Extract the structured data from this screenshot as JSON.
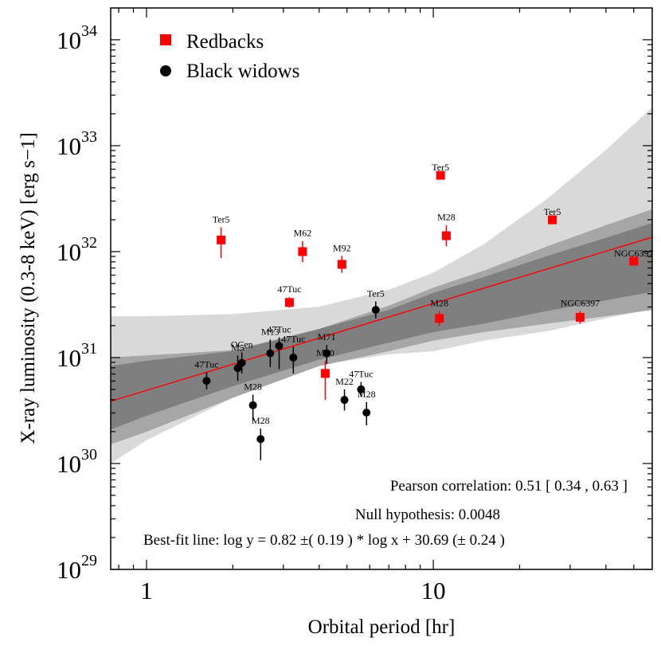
{
  "chart_data": {
    "type": "scatter",
    "xlabel": "Orbital period [hr]",
    "ylabel": "X-ray luminosity (0.3-8 keV) [erg s−1]",
    "xscale": "log",
    "yscale": "log",
    "xlim": [
      0.75,
      58
    ],
    "ylim": [
      29.0,
      34.3
    ],
    "x_ticks": [
      {
        "value": 1,
        "label": "1"
      },
      {
        "value": 10,
        "label": "10"
      }
    ],
    "y_ticks": [
      {
        "value": 29,
        "base": "10",
        "exp": "29"
      },
      {
        "value": 30,
        "base": "10",
        "exp": "30"
      },
      {
        "value": 31,
        "base": "10",
        "exp": "31"
      },
      {
        "value": 32,
        "base": "10",
        "exp": "32"
      },
      {
        "value": 33,
        "base": "10",
        "exp": "33"
      },
      {
        "value": 34,
        "base": "10",
        "exp": "34"
      }
    ],
    "legend": {
      "position": "top-left",
      "entries": [
        {
          "label": "Redbacks",
          "marker": "square",
          "color": "#ff0000"
        },
        {
          "label": "Black widows",
          "marker": "circle",
          "color": "#000000"
        }
      ]
    },
    "series": [
      {
        "name": "Redbacks",
        "marker": "square",
        "color": "#ff0000",
        "points": [
          {
            "label": "Ter5",
            "x": 1.82,
            "logy": 32.11,
            "err_low": 0.17,
            "err_high": 0.12
          },
          {
            "label": "M62",
            "x": 3.5,
            "logy": 32.0,
            "err_low": 0.1,
            "err_high": 0.1
          },
          {
            "label": "M92",
            "x": 4.8,
            "logy": 31.88,
            "err_low": 0.08,
            "err_high": 0.08
          },
          {
            "label": "47Tuc",
            "x": 3.15,
            "logy": 31.52,
            "err_low": 0.05,
            "err_high": 0.05
          },
          {
            "label": "M30",
            "x": 4.2,
            "logy": 30.85,
            "err_low": 0.25,
            "err_high": 0.12
          },
          {
            "label": "Ter5",
            "x": 10.6,
            "logy": 32.72,
            "err_low": 0.0,
            "err_high": 0.0
          },
          {
            "label": "M28",
            "x": 11.1,
            "logy": 32.15,
            "err_low": 0.1,
            "err_high": 0.1
          },
          {
            "label": "M28",
            "x": 10.5,
            "logy": 31.37,
            "err_low": 0.07,
            "err_high": 0.07
          },
          {
            "label": "Ter5",
            "x": 26.0,
            "logy": 32.3,
            "err_low": 0.0,
            "err_high": 0.0
          },
          {
            "label": "NGC6397",
            "x": 50.0,
            "logy": 31.91,
            "err_low": 0.0,
            "err_high": 0.0
          },
          {
            "label": "NGC6397",
            "x": 32.5,
            "logy": 31.38,
            "err_low": 0.06,
            "err_high": 0.06
          }
        ]
      },
      {
        "name": "Black widows",
        "marker": "circle",
        "color": "#000000",
        "points": [
          {
            "label": "47Tuc",
            "x": 1.62,
            "logy": 30.78,
            "err_low": 0.08,
            "err_high": 0.08
          },
          {
            "label": "OCen",
            "x": 2.15,
            "logy": 30.95,
            "err_low": 0.1,
            "err_high": 0.1
          },
          {
            "label": "M5",
            "x": 2.08,
            "logy": 30.9,
            "err_low": 0.12,
            "err_high": 0.12
          },
          {
            "label": "M13",
            "x": 2.7,
            "logy": 31.04,
            "err_low": 0.13,
            "err_high": 0.13
          },
          {
            "label": "47Tuc",
            "x": 2.9,
            "logy": 31.11,
            "err_low": 0.22,
            "err_high": 0.08
          },
          {
            "label": "47Tuc",
            "x": 3.25,
            "logy": 31.0,
            "err_low": 0.15,
            "err_high": 0.1
          },
          {
            "label": "M71",
            "x": 4.25,
            "logy": 31.04,
            "err_low": 0.1,
            "err_high": 0.08
          },
          {
            "label": "Ter5",
            "x": 6.3,
            "logy": 31.45,
            "err_low": 0.08,
            "err_high": 0.08
          },
          {
            "label": "M28",
            "x": 2.35,
            "logy": 30.55,
            "err_low": 0.15,
            "err_high": 0.1
          },
          {
            "label": "M28",
            "x": 2.5,
            "logy": 30.23,
            "err_low": 0.2,
            "err_high": 0.1
          },
          {
            "label": "M22",
            "x": 4.9,
            "logy": 30.6,
            "err_low": 0.1,
            "err_high": 0.1
          },
          {
            "label": "47Tuc",
            "x": 5.6,
            "logy": 30.7,
            "err_low": 0.07,
            "err_high": 0.07
          },
          {
            "label": "M28",
            "x": 5.85,
            "logy": 30.48,
            "err_low": 0.12,
            "err_high": 0.1
          }
        ]
      }
    ],
    "fit": {
      "slope": 0.82,
      "slope_err": 0.19,
      "intercept": 30.69,
      "intercept_err": 0.24,
      "line_color": "#ff0000",
      "bands": [
        {
          "level": "outer",
          "color": "#d9d9d9",
          "samples": [
            [
              0.75,
              30.0,
              31.39
            ],
            [
              1.0,
              30.22,
              31.39
            ],
            [
              2.0,
              30.62,
              31.41
            ],
            [
              4.0,
              30.93,
              31.48
            ],
            [
              7.0,
              31.03,
              31.64
            ],
            [
              10.0,
              31.06,
              31.8
            ],
            [
              15.0,
              31.16,
              32.07
            ],
            [
              25.0,
              31.25,
              32.5
            ],
            [
              40.0,
              31.37,
              32.96
            ],
            [
              58.0,
              31.46,
              33.36
            ]
          ]
        },
        {
          "level": "middle",
          "color": "#a6a6a6",
          "samples": [
            [
              0.75,
              30.18,
              31.0
            ],
            [
              1.0,
              30.3,
              31.02
            ],
            [
              2.0,
              30.62,
              31.07
            ],
            [
              4.0,
              30.92,
              31.27
            ],
            [
              7.0,
              31.06,
              31.49
            ],
            [
              10.0,
              31.16,
              31.66
            ],
            [
              15.0,
              31.24,
              31.82
            ],
            [
              25.0,
              31.32,
              32.05
            ],
            [
              40.0,
              31.39,
              32.25
            ],
            [
              58.0,
              31.45,
              32.4
            ]
          ]
        },
        {
          "level": "inner",
          "color": "#7f7f7f",
          "samples": [
            [
              0.75,
              30.32,
              30.92
            ],
            [
              1.0,
              30.45,
              30.97
            ],
            [
              2.0,
              30.73,
              31.06
            ],
            [
              4.0,
              30.98,
              31.27
            ],
            [
              7.0,
              31.14,
              31.45
            ],
            [
              10.0,
              31.24,
              31.61
            ],
            [
              15.0,
              31.32,
              31.76
            ],
            [
              25.0,
              31.44,
              31.96
            ],
            [
              40.0,
              31.54,
              32.13
            ],
            [
              58.0,
              31.62,
              32.27
            ]
          ]
        }
      ]
    },
    "stats": {
      "pearson_text": "Pearson correlation:  0.51  [ 0.34 , 0.63 ]",
      "null_text": "Null hypothesis:  0.0048",
      "fit_text": "Best-fit line: log y =  0.82 ±( 0.19 ) * log x +  30.69  (± 0.24 )"
    }
  }
}
